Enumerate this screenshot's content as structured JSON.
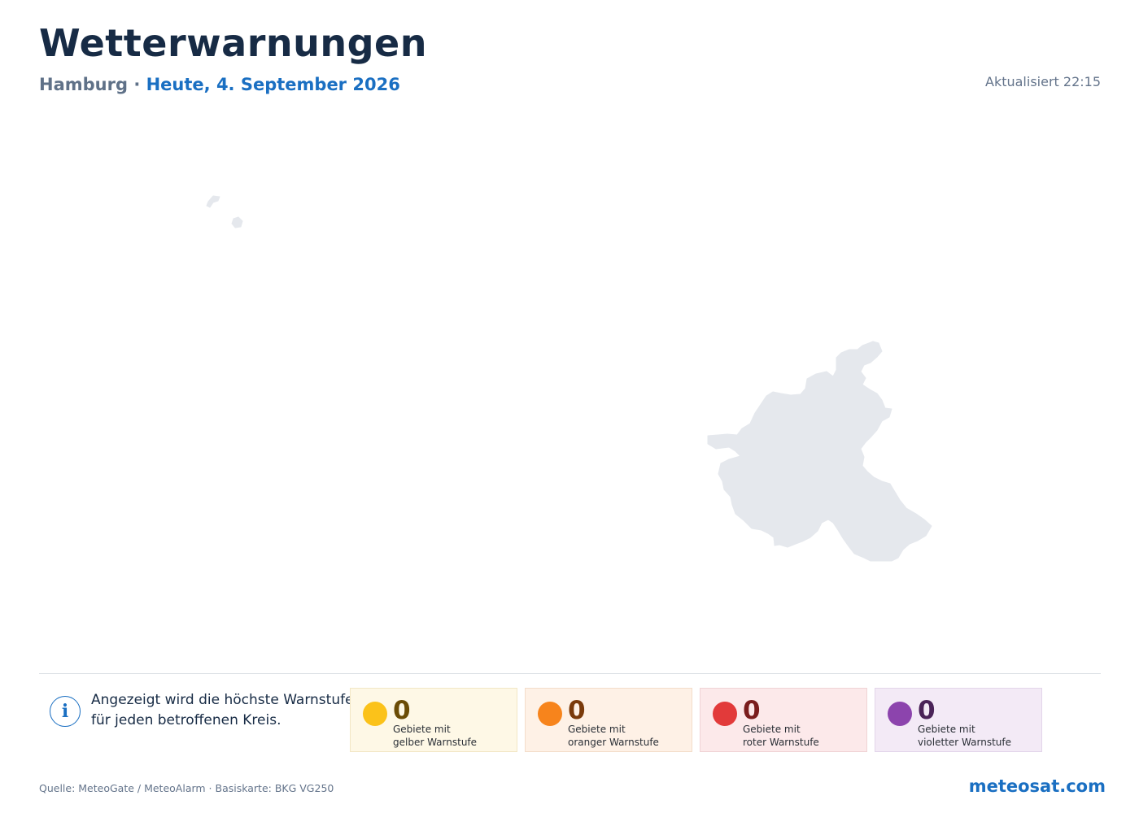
{
  "header": {
    "title": "Wetterwarnungen",
    "region": "Hamburg",
    "separator": "·",
    "date": "Heute, 4. September 2026",
    "updated": "Aktualisiert 22:15"
  },
  "map": {
    "region_name": "Hamburg",
    "fill_color": "#e5e8ed"
  },
  "info": {
    "icon": "info-icon",
    "line1": "Angezeigt wird die höchste Warnstufe",
    "line2": "für jeden betroffenen Kreis."
  },
  "summary": [
    {
      "level": "yellow",
      "color": "#fbc21a",
      "count": "0",
      "label_line1": "Gebiete mit",
      "label_line2": "gelber Warnstufe"
    },
    {
      "level": "orange",
      "color": "#f7841c",
      "count": "0",
      "label_line1": "Gebiete mit",
      "label_line2": "oranger Warnstufe"
    },
    {
      "level": "red",
      "color": "#e23a3a",
      "count": "0",
      "label_line1": "Gebiete mit",
      "label_line2": "roter Warnstufe"
    },
    {
      "level": "violet",
      "color": "#8c44ad",
      "count": "0",
      "label_line1": "Gebiete mit",
      "label_line2": "violetter Warnstufe"
    }
  ],
  "footer": {
    "source": "Quelle: MeteoGate / MeteoAlarm · Basiskarte: BKG VG250",
    "brand": "meteosat.com"
  }
}
